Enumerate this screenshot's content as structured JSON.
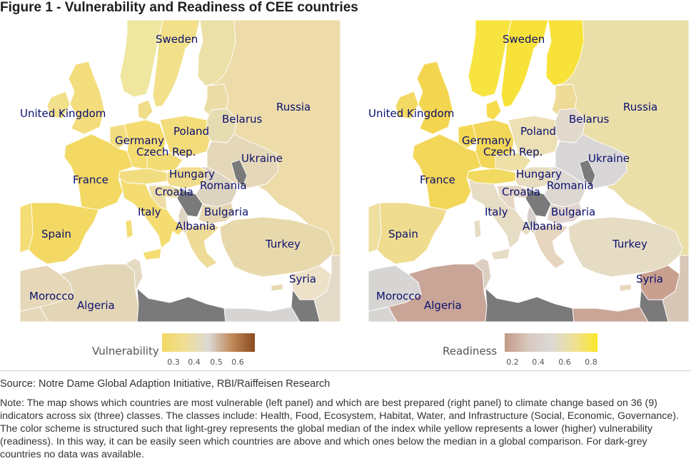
{
  "figure": {
    "title": "Figure 1 - Vulnerability and Readiness of CEE countries"
  },
  "panels": [
    {
      "id": "vulnerability",
      "labels": {
        "united_kingdom": "United Kingdom",
        "sweden": "Sweden",
        "russia": "Russia",
        "belarus": "Belarus",
        "poland": "Poland",
        "germany": "Germany",
        "czech_rep": "Czech Rep.",
        "ukraine": "Ukraine",
        "france": "France",
        "hungary": "Hungary",
        "romania": "Romania",
        "croatia": "Croatia",
        "italy": "Italy",
        "bulgaria": "Bulgaria",
        "albania": "Albania",
        "spain": "Spain",
        "turkey": "Turkey",
        "syria": "Syria",
        "morocco": "Morocco",
        "algeria": "Algeria"
      },
      "colors": {
        "sea": "#ffffff",
        "no_data": "#7a7a7a",
        "border": "#ffffff",
        "sweden": "#f2e08a",
        "norway": "#efe6a0",
        "finland": "#ebe0a8",
        "russia": "#eddcaa",
        "united_kingdom": "#f3dd7d",
        "ireland": "#f2e08c",
        "france": "#f3d964",
        "spain": "#f3d964",
        "portugal": "#f4dd76",
        "germany": "#f4dc70",
        "poland": "#f3dc7a",
        "czech_rep": "#f3dc76",
        "hungary": "#f1dc8c",
        "romania": "#dcd4c0",
        "croatia": "#ecdca6",
        "bulgaria": "#e6d7b2",
        "albania": "#e0d4c2",
        "italy": "#f4dc70",
        "belarus": "#e6dcb2",
        "ukraine": "#e4d8b8",
        "baltics": "#ebdca6",
        "turkey": "#e8d9ac",
        "morocco": "#e6d8b8",
        "algeria": "#e3d6b6",
        "tunisia": "#e4dac2",
        "libya": "#d9d5d0",
        "syria": "#ede1c8",
        "moldova": "#7a7a7a",
        "serbia": "#7a7a7a",
        "cyprus": "#e6dab2",
        "middle_east": "#e3dac8",
        "greece": "#efdb98",
        "denmark": "#f0dd8a",
        "benelux": "#f2dc80",
        "austria_swiss": "#f2dc80",
        "baltic_states": "#ebdca6",
        "egypt": "#d7d5d3"
      }
    },
    {
      "id": "readiness",
      "labels": {
        "united_kingdom": "United Kingdom",
        "sweden": "Sweden",
        "russia": "Russia",
        "belarus": "Belarus",
        "poland": "Poland",
        "germany": "Germany",
        "czech_rep": "Czech Rep.",
        "ukraine": "Ukraine",
        "france": "France",
        "hungary": "Hungary",
        "romania": "Romania",
        "croatia": "Croatia",
        "italy": "Italy",
        "bulgaria": "Bulgaria",
        "albania": "Albania",
        "spain": "Spain",
        "turkey": "Turkey",
        "syria": "Syria",
        "morocco": "Morocco",
        "algeria": "Algeria"
      },
      "colors": {
        "sea": "#ffffff",
        "no_data": "#7a7a7a",
        "border": "#ffffff",
        "sweden": "#f8e23a",
        "norway": "#f8e440",
        "finland": "#f8e23a",
        "russia": "#eadfa8",
        "united_kingdom": "#f4d54f",
        "ireland": "#f3d963",
        "france": "#f3d759",
        "spain": "#efdc8e",
        "portugal": "#ede0a0",
        "germany": "#f3d759",
        "poland": "#ece0b4",
        "czech_rep": "#eee0a6",
        "hungary": "#e8dcc0",
        "romania": "#ddd7d2",
        "croatia": "#e6d6c8",
        "bulgaria": "#e1d5ce",
        "albania": "#d6cfcb",
        "italy": "#e7dcc4",
        "belarus": "#e1d9cc",
        "ukraine": "#d8d6d6",
        "baltics": "#efdb98",
        "turkey": "#e6dcc4",
        "morocco": "#d7d5d3",
        "algeria": "#c9a598",
        "tunisia": "#dccfc2",
        "libya": "#c7a596",
        "syria": "#c9a08e",
        "moldova": "#7a7a7a",
        "serbia": "#7a7a7a",
        "cyprus": "#e6d8bc",
        "middle_east": "#d8c6b6",
        "greece": "#e6d6c0",
        "denmark": "#f6dc4c",
        "benelux": "#f4d854",
        "austria_swiss": "#f2d960",
        "baltic_states": "#efdb98",
        "egypt": "#c9a598"
      }
    }
  ],
  "legends": [
    {
      "title": "Vulnerability",
      "ticks": [
        "0.3",
        "0.4",
        "0.5",
        "0.6"
      ],
      "colors": [
        "#f3d964",
        "#f0de96",
        "#dcd9d6",
        "#c08a5a",
        "#8a4a1f"
      ]
    },
    {
      "title": "Readiness",
      "ticks": [
        "0.2",
        "0.4",
        "0.6",
        "0.8"
      ],
      "colors": [
        "#c39a86",
        "#d8c8be",
        "#dcd9d6",
        "#eee196",
        "#fbe62a"
      ]
    }
  ],
  "source": "Source: Notre Dame Global Adaption Initiative, RBI/Raiffeisen Research",
  "note": "Note: The map shows which countries are most vulnerable (left panel) and which are best prepared (right panel) to climate change based on 36 (9) indicators across six (three) classes. The classes include: Health, Food, Ecosystem, Habitat, Water, and Infrastructure (Social, Economic, Governance). The color scheme is structured such that light-grey represents the global median of the index while yellow represents a lower (higher) vulnerability (readiness). In this way, it can be easily seen which countries are above and which ones below the median in a global comparison. For dark-grey countries no data was available."
}
